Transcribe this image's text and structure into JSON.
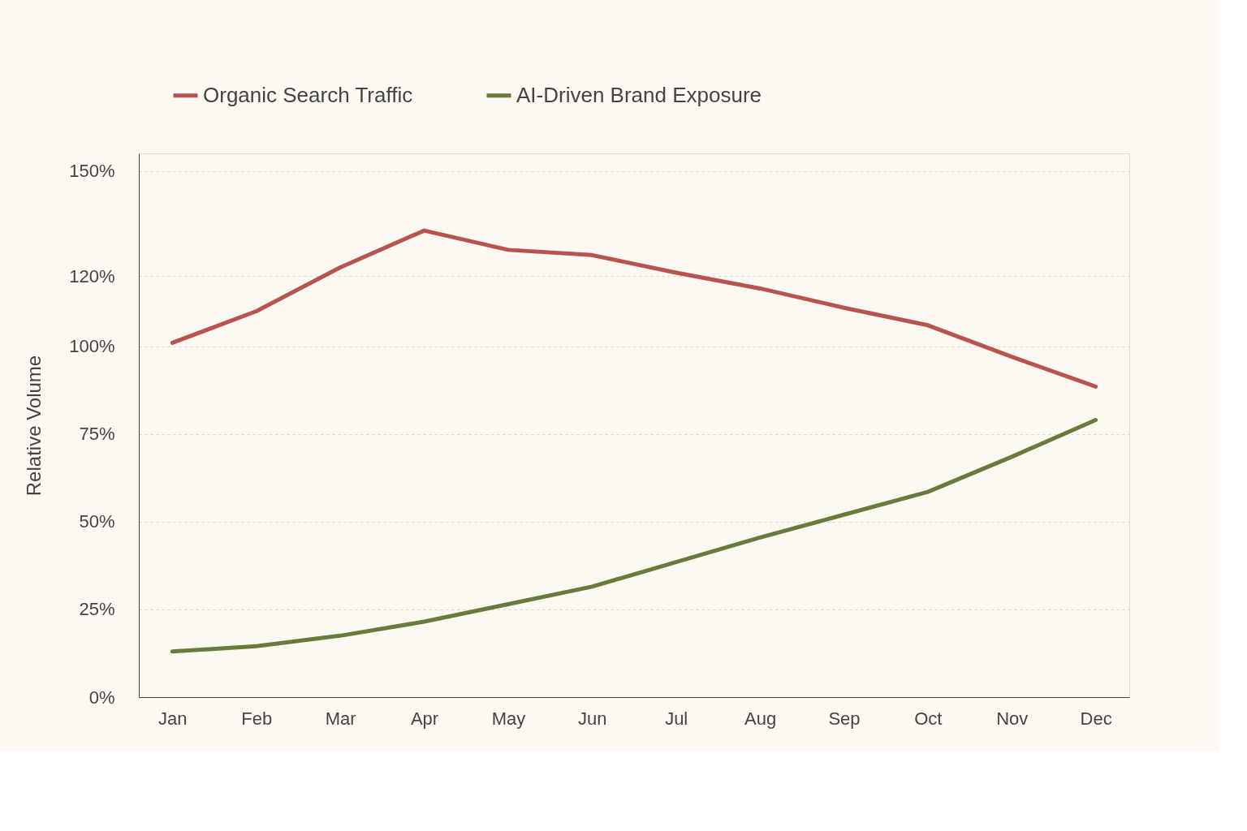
{
  "chart_data": {
    "type": "line",
    "ylabel": "Relative Volume",
    "categories": [
      "Jan",
      "Feb",
      "Mar",
      "Apr",
      "May",
      "Jun",
      "Jul",
      "Aug",
      "Sep",
      "Oct",
      "Nov",
      "Dec"
    ],
    "ylim": [
      0,
      155
    ],
    "yticks": [
      {
        "value": 0,
        "label": "0%"
      },
      {
        "value": 25,
        "label": "25%"
      },
      {
        "value": 50,
        "label": "50%"
      },
      {
        "value": 75,
        "label": "75%"
      },
      {
        "value": 100,
        "label": "100%"
      },
      {
        "value": 120,
        "label": "120%"
      },
      {
        "value": 150,
        "label": "150%"
      }
    ],
    "series": [
      {
        "name": "Organic Search Traffic",
        "color": "#b85450",
        "values": [
          101,
          110,
          122.5,
          133,
          127.5,
          126,
          121,
          116.5,
          111,
          106,
          97,
          88.5
        ]
      },
      {
        "name": "AI-Driven Brand Exposure",
        "color": "#6b7a3a",
        "values": [
          13,
          14.5,
          17.5,
          21.5,
          26.5,
          31.5,
          38.5,
          45.5,
          52,
          58.5,
          68.5,
          79
        ]
      }
    ],
    "grid": "y",
    "legend": "top",
    "marker": "none",
    "line_style": "solid"
  }
}
